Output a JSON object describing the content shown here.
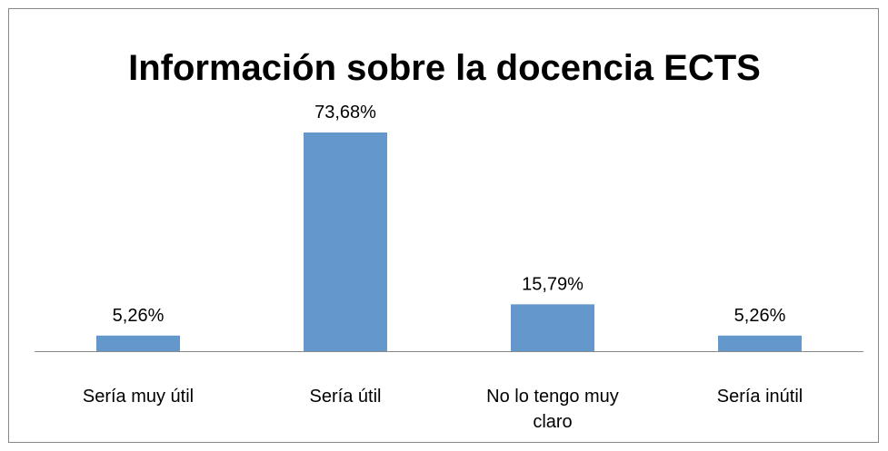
{
  "chart_data": {
    "type": "bar",
    "title": "Información sobre la docencia ECTS",
    "categories": [
      "Sería muy útil",
      "Sería útil",
      "No lo tengo muy claro",
      "Sería inútil"
    ],
    "values": [
      5.26,
      73.68,
      15.79,
      5.26
    ],
    "value_labels": [
      "5,26%",
      "73,68%",
      "15,79%",
      "5,26%"
    ],
    "color": "#6497cb"
  }
}
